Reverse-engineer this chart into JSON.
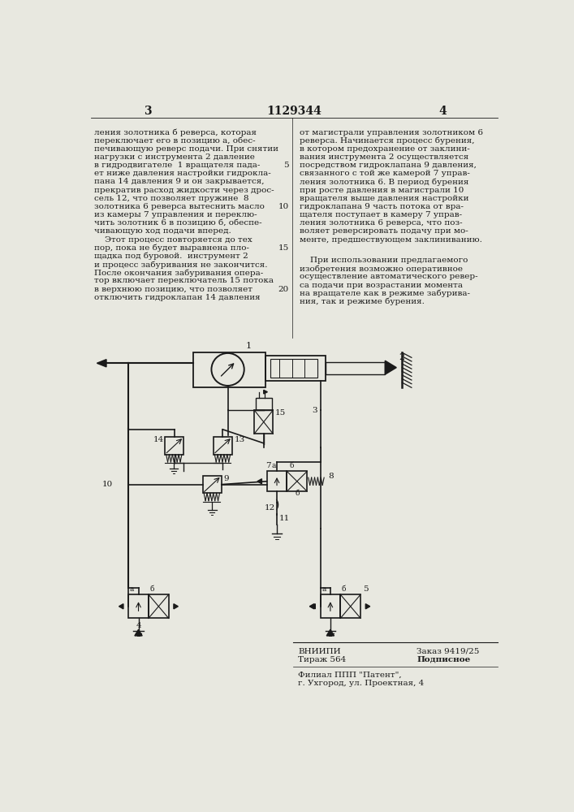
{
  "bg_color": "#e8e8e0",
  "text_color": "#1a1a1a",
  "page_num_left": "3",
  "page_num_center": "1129344",
  "page_num_right": "4",
  "col_left_lines": [
    "ления золотника б реверса, которая",
    "переключает его в позицию а, обес-",
    "печивающую реверс подачи. При снятии",
    "нагрузки с инструмента 2 давление",
    "в гидродвигателе  1 вращателя пада-",
    "ет ниже давления настройки гидрокла-",
    "пана 14 давления 9 и он закрывается,",
    "прекратив расход жидкости через дрос-",
    "сель 12, что позволяет пружине  8",
    "золотника 6 реверса вытеснить масло",
    "из камеры 7 управления и переклю-",
    "чить золотник 6 в позицию б, обеспе-",
    "чивающую ход подачи вперед.",
    "    Этот процесс повторяется до тех",
    "пор, пока не будет выравнена пло-",
    "щадка под буровой.  инструмент 2",
    "и процесс забуривания не закончится.",
    "После окончания забуривания опера-",
    "тор включает переключатель 15 потока",
    "в верхнюю позицию, что позволяет",
    "отключить гидроклапан 14 давления"
  ],
  "col_right_lines": [
    "от магистрали управления золотником 6",
    "реверса. Начинается процесс бурения,",
    "в котором предохранение от заклини-",
    "вания инструмента 2 осуществляется",
    "посредством гидроклапана 9 давления,",
    "связанного с той же камерой 7 управ-",
    "ления золотника 6. В период бурения",
    "при росте давления в магистрали 10",
    "вращателя выше давления настройки",
    "гидроклапана 9 часть потока от вра-",
    "щателя поступает в камеру 7 управ-",
    "ления золотника 6 реверса, что поз-",
    "воляет реверсировать подачу при мо-",
    "менте, предшествующем заклиниванию."
  ],
  "col_right2_lines": [
    "    При использовании предлагаемого",
    "изобретения возможно оперативное",
    "осуществление автоматического ревер-",
    "са подачи при возрастании момента",
    "на вращателе как в режиме забурива-",
    "ния, так и режиме бурения."
  ],
  "footer_vniiipi": "ВНИИПИ",
  "footer_order": "Заказ 9419/25",
  "footer_tirazh": "Тираж 564",
  "footer_podpis": "Подписное",
  "footer_filial": "Филиал ППП \"Патент\",",
  "footer_address": "г. Ухгород, ул. Проектная, 4"
}
